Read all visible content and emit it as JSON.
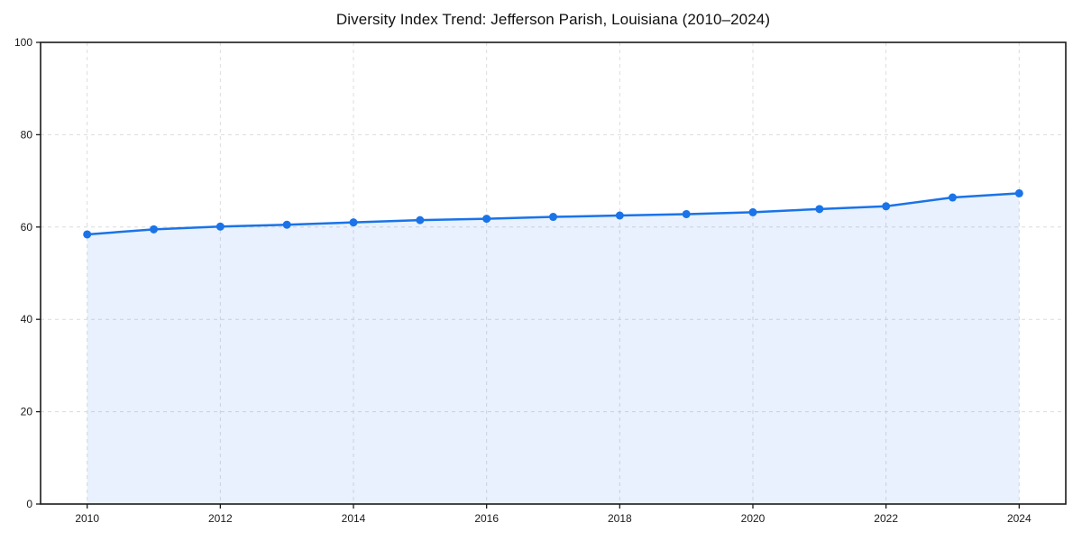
{
  "chart_data": {
    "type": "area",
    "title": "Diversity Index Trend: Jefferson Parish, Louisiana (2010–2024)",
    "xlabel": "",
    "ylabel": "",
    "x": [
      2010,
      2011,
      2012,
      2013,
      2014,
      2015,
      2016,
      2017,
      2018,
      2019,
      2020,
      2021,
      2022,
      2023,
      2024
    ],
    "values": [
      58.4,
      59.5,
      60.1,
      60.5,
      61.0,
      61.5,
      61.8,
      62.2,
      62.5,
      62.8,
      63.2,
      63.9,
      64.5,
      66.4,
      67.3
    ],
    "xlim": [
      2009.3,
      2024.7
    ],
    "ylim": [
      0,
      100
    ],
    "xticks": [
      2010,
      2012,
      2014,
      2016,
      2018,
      2020,
      2022,
      2024
    ],
    "yticks": [
      0,
      20,
      40,
      60,
      80,
      100
    ],
    "grid": true,
    "grid_style": "dashed",
    "legend": false,
    "marker": "circle",
    "colors": {
      "line": "#1a73e8",
      "fill": "#1a73e8",
      "fill_opacity": 0.1,
      "grid": "#dcdcdc",
      "axis": "#1a1a1a",
      "text": "#1a1a1a",
      "background": "#ffffff"
    }
  }
}
